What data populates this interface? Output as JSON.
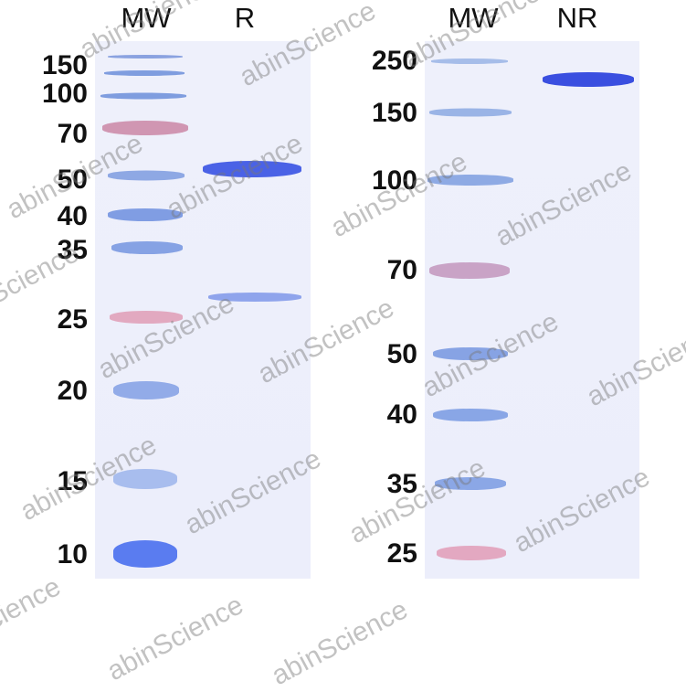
{
  "left_panel": {
    "lane_titles": [
      "MW",
      "R"
    ],
    "marker_labels": [
      "150",
      "100",
      "70",
      "50",
      "40",
      "35",
      "25",
      "20",
      "15",
      "10"
    ]
  },
  "right_panel": {
    "lane_titles": [
      "MW",
      "NR"
    ],
    "marker_labels": [
      "250",
      "150",
      "100",
      "70",
      "50",
      "40",
      "35",
      "25"
    ]
  },
  "watermark": "abinScience",
  "colors": {
    "band_blue": "#3a4fe0",
    "marker_blue": "#7f9ddf",
    "marker_pink": "#c98aa8",
    "gel": "#eceefb"
  }
}
